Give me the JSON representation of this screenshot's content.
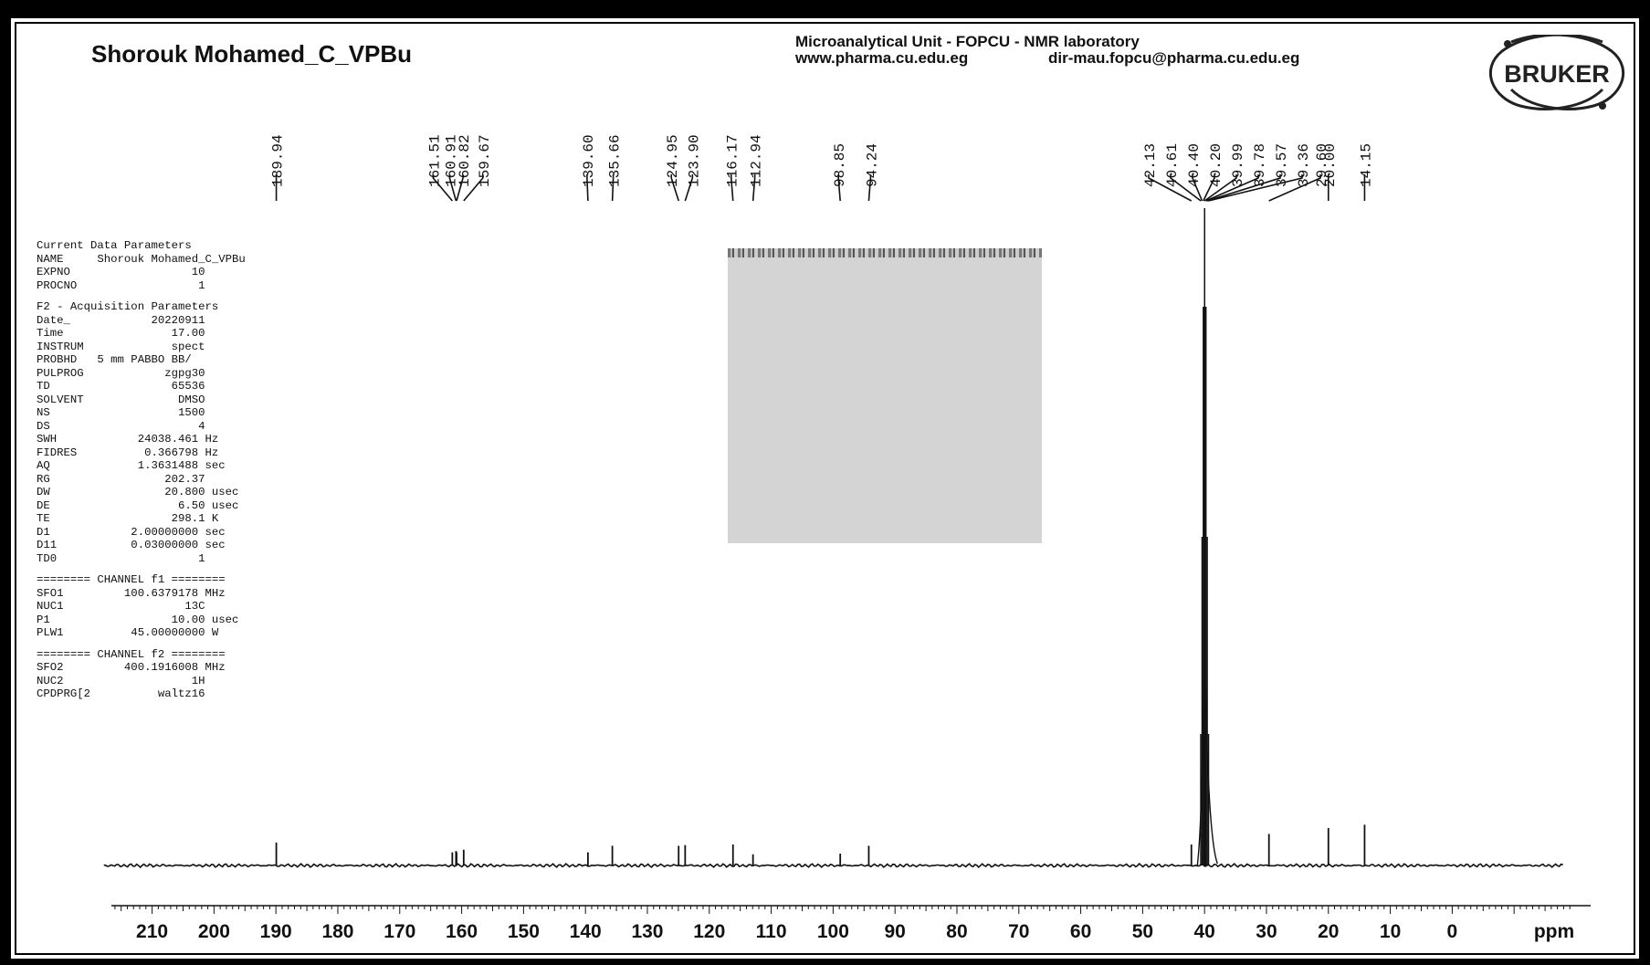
{
  "header": {
    "title": "Shorouk Mohamed_C_VPBu",
    "lab_line1": "Microanalytical Unit - FOPCU -  NMR laboratory",
    "lab_line2_web": "www.pharma.cu.edu.eg",
    "lab_line2_email": "dir-mau.fopcu@pharma.cu.edu.eg",
    "logo_text": "BRUKER"
  },
  "parameters": [
    "Current Data Parameters",
    "NAME     Shorouk Mohamed_C_VPBu",
    "EXPNO                  10",
    "PROCNO                  1",
    "",
    "F2 - Acquisition Parameters",
    "Date_            20220911",
    "Time                17.00",
    "INSTRUM             spect",
    "PROBHD   5 mm PABBO BB/",
    "PULPROG            zgpg30",
    "TD                  65536",
    "SOLVENT              DMSO",
    "NS                   1500",
    "DS                      4",
    "SWH            24038.461 Hz",
    "FIDRES          0.366798 Hz",
    "AQ             1.3631488 sec",
    "RG                 202.37",
    "DW                 20.800 usec",
    "DE                   6.50 usec",
    "TE                  298.1 K",
    "D1            2.00000000 sec",
    "D11           0.03000000 sec",
    "TD0                     1",
    "",
    "======== CHANNEL f1 ========",
    "SFO1         100.6379178 MHz",
    "NUC1                  13C",
    "P1                  10.00 usec",
    "PLW1          45.00000000 W",
    "",
    "======== CHANNEL f2 ========",
    "SFO2         400.1916008 MHz",
    "NUC2                   1H",
    "CPDPRG[2          waltz16"
  ],
  "chart_data": {
    "type": "line",
    "xlabel": "ppm",
    "x_reversed": true,
    "xlim": [
      221,
      -20
    ],
    "ticks": [
      210,
      200,
      190,
      180,
      170,
      160,
      150,
      140,
      130,
      120,
      110,
      100,
      90,
      80,
      70,
      60,
      50,
      40,
      30,
      20,
      10,
      0
    ],
    "peak_labels": [
      "189.94",
      "161.51",
      "160.91",
      "160.82",
      "159.67",
      "139.60",
      "135.66",
      "124.95",
      "123.90",
      "116.17",
      "112.94",
      "98.85",
      "94.24",
      "42.13",
      "40.61",
      "40.40",
      "40.20",
      "39.99",
      "39.78",
      "39.57",
      "39.36",
      "29.60",
      "20.00",
      "14.15"
    ],
    "peaks": [
      {
        "ppm": 189.94,
        "intensity": 0.035
      },
      {
        "ppm": 161.51,
        "intensity": 0.02
      },
      {
        "ppm": 160.91,
        "intensity": 0.022
      },
      {
        "ppm": 160.82,
        "intensity": 0.02
      },
      {
        "ppm": 159.67,
        "intensity": 0.024
      },
      {
        "ppm": 139.6,
        "intensity": 0.02
      },
      {
        "ppm": 135.66,
        "intensity": 0.03
      },
      {
        "ppm": 124.95,
        "intensity": 0.03
      },
      {
        "ppm": 123.9,
        "intensity": 0.031
      },
      {
        "ppm": 116.17,
        "intensity": 0.032
      },
      {
        "ppm": 112.94,
        "intensity": 0.017
      },
      {
        "ppm": 98.85,
        "intensity": 0.018
      },
      {
        "ppm": 94.24,
        "intensity": 0.03
      },
      {
        "ppm": 42.13,
        "intensity": 0.032
      },
      {
        "ppm": 40.61,
        "intensity": 0.2
      },
      {
        "ppm": 40.4,
        "intensity": 0.5
      },
      {
        "ppm": 40.2,
        "intensity": 0.85
      },
      {
        "ppm": 39.99,
        "intensity": 1.0
      },
      {
        "ppm": 39.78,
        "intensity": 0.85
      },
      {
        "ppm": 39.57,
        "intensity": 0.5
      },
      {
        "ppm": 39.36,
        "intensity": 0.2
      },
      {
        "ppm": 29.6,
        "intensity": 0.048
      },
      {
        "ppm": 20.0,
        "intensity": 0.057
      },
      {
        "ppm": 14.15,
        "intensity": 0.062
      }
    ]
  }
}
